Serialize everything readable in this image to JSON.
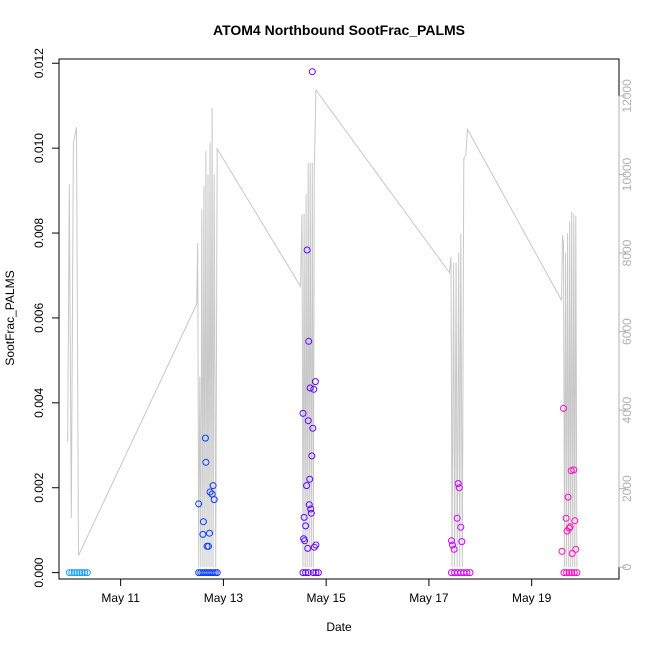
{
  "chart_data": {
    "type": "scatter",
    "title": "ATOM4 Northbound SootFrac_PALMS",
    "xlabel": "Date",
    "ylabel": "SootFrac_PALMS",
    "x_unit": "days (May)",
    "xlim": [
      9.8,
      20.7
    ],
    "ylim": [
      -0.00015,
      0.0121
    ],
    "y2lim": [
      -300,
      12940
    ],
    "x_ticks": [
      {
        "value": 11,
        "label": "May 11"
      },
      {
        "value": 13,
        "label": "May 13"
      },
      {
        "value": 15,
        "label": "May 15"
      },
      {
        "value": 17,
        "label": "May 17"
      },
      {
        "value": 19,
        "label": "May 19"
      }
    ],
    "y_ticks": [
      {
        "value": 0,
        "label": "0.000"
      },
      {
        "value": 0.002,
        "label": "0.002"
      },
      {
        "value": 0.004,
        "label": "0.004"
      },
      {
        "value": 0.006,
        "label": "0.006"
      },
      {
        "value": 0.008,
        "label": "0.008"
      },
      {
        "value": 0.01,
        "label": "0.010"
      },
      {
        "value": 0.012,
        "label": "0.012"
      }
    ],
    "y2_ticks": [
      {
        "value": 0,
        "label": "0"
      },
      {
        "value": 2000,
        "label": "2000"
      },
      {
        "value": 4000,
        "label": "4000"
      },
      {
        "value": 6000,
        "label": "6000"
      },
      {
        "value": 8000,
        "label": "8000"
      },
      {
        "value": 10000,
        "label": "10000"
      },
      {
        "value": 12000,
        "label": "12000"
      }
    ],
    "grid": false,
    "legend": "none",
    "series": [
      {
        "role": "soot_points",
        "color_scale": [
          "#1ea8ff",
          "#0044ff",
          "#6a00ff",
          "#cc00ff",
          "#ff10c0"
        ],
        "points": [
          {
            "x": 10.0,
            "y": 0
          },
          {
            "x": 10.05,
            "y": 0
          },
          {
            "x": 10.1,
            "y": 0
          },
          {
            "x": 10.15,
            "y": 0
          },
          {
            "x": 10.2,
            "y": 0
          },
          {
            "x": 10.25,
            "y": 0
          },
          {
            "x": 10.3,
            "y": 0
          },
          {
            "x": 10.35,
            "y": 0
          },
          {
            "x": 12.52,
            "y": 0
          },
          {
            "x": 12.56,
            "y": 0
          },
          {
            "x": 12.6,
            "y": 0
          },
          {
            "x": 12.64,
            "y": 0
          },
          {
            "x": 12.68,
            "y": 0
          },
          {
            "x": 12.72,
            "y": 0
          },
          {
            "x": 12.76,
            "y": 0
          },
          {
            "x": 12.8,
            "y": 0
          },
          {
            "x": 12.84,
            "y": 0
          },
          {
            "x": 12.88,
            "y": 0
          },
          {
            "x": 12.52,
            "y": 0.00162
          },
          {
            "x": 12.6,
            "y": 0.0009
          },
          {
            "x": 12.61,
            "y": 0.0012
          },
          {
            "x": 12.65,
            "y": 0.00317
          },
          {
            "x": 12.66,
            "y": 0.0026
          },
          {
            "x": 12.68,
            "y": 0.00062
          },
          {
            "x": 12.71,
            "y": 0.00062
          },
          {
            "x": 12.73,
            "y": 0.00093
          },
          {
            "x": 12.74,
            "y": 0.0019
          },
          {
            "x": 12.78,
            "y": 0.00185
          },
          {
            "x": 12.8,
            "y": 0.00205
          },
          {
            "x": 12.82,
            "y": 0.00172
          },
          {
            "x": 14.55,
            "y": 0
          },
          {
            "x": 14.6,
            "y": 0
          },
          {
            "x": 14.65,
            "y": 0
          },
          {
            "x": 14.75,
            "y": 0
          },
          {
            "x": 14.8,
            "y": 0
          },
          {
            "x": 14.85,
            "y": 0
          },
          {
            "x": 14.55,
            "y": 0.00375
          },
          {
            "x": 14.56,
            "y": 0.0008
          },
          {
            "x": 14.57,
            "y": 0.0013
          },
          {
            "x": 14.58,
            "y": 0.00075
          },
          {
            "x": 14.6,
            "y": 0.0011
          },
          {
            "x": 14.62,
            "y": 0.00205
          },
          {
            "x": 14.63,
            "y": 0.0076
          },
          {
            "x": 14.64,
            "y": 0.00057
          },
          {
            "x": 14.65,
            "y": 0.00358
          },
          {
            "x": 14.66,
            "y": 0.00545
          },
          {
            "x": 14.67,
            "y": 0.0016
          },
          {
            "x": 14.68,
            "y": 0.0022
          },
          {
            "x": 14.69,
            "y": 0.00435
          },
          {
            "x": 14.7,
            "y": 0.0015
          },
          {
            "x": 14.71,
            "y": 0.0014
          },
          {
            "x": 14.72,
            "y": 0.00275
          },
          {
            "x": 14.73,
            "y": 0.0118
          },
          {
            "x": 14.74,
            "y": 0.0034
          },
          {
            "x": 14.76,
            "y": 0.00432
          },
          {
            "x": 14.77,
            "y": 0.0006
          },
          {
            "x": 14.79,
            "y": 0.0045
          },
          {
            "x": 14.8,
            "y": 0.00065
          },
          {
            "x": 17.44,
            "y": 0
          },
          {
            "x": 17.5,
            "y": 0
          },
          {
            "x": 17.56,
            "y": 0
          },
          {
            "x": 17.62,
            "y": 0
          },
          {
            "x": 17.68,
            "y": 0
          },
          {
            "x": 17.74,
            "y": 0
          },
          {
            "x": 17.8,
            "y": 0
          },
          {
            "x": 17.44,
            "y": 0.00075
          },
          {
            "x": 17.46,
            "y": 0.00065
          },
          {
            "x": 17.49,
            "y": 0.00055
          },
          {
            "x": 17.55,
            "y": 0.00128
          },
          {
            "x": 17.57,
            "y": 0.0021
          },
          {
            "x": 17.59,
            "y": 0.002
          },
          {
            "x": 17.62,
            "y": 0.00107
          },
          {
            "x": 17.64,
            "y": 0.00073
          },
          {
            "x": 19.63,
            "y": 0
          },
          {
            "x": 19.68,
            "y": 0
          },
          {
            "x": 19.73,
            "y": 0
          },
          {
            "x": 19.78,
            "y": 0
          },
          {
            "x": 19.83,
            "y": 0
          },
          {
            "x": 19.88,
            "y": 0
          },
          {
            "x": 19.59,
            "y": 0.0005
          },
          {
            "x": 19.62,
            "y": 0.00387
          },
          {
            "x": 19.67,
            "y": 0.00128
          },
          {
            "x": 19.69,
            "y": 0.00098
          },
          {
            "x": 19.71,
            "y": 0.00178
          },
          {
            "x": 19.73,
            "y": 0.00105
          },
          {
            "x": 19.75,
            "y": 0.00108
          },
          {
            "x": 19.77,
            "y": 0.0024
          },
          {
            "x": 19.79,
            "y": 0.00045
          },
          {
            "x": 19.82,
            "y": 0.00242
          },
          {
            "x": 19.84,
            "y": 0.00122
          },
          {
            "x": 19.86,
            "y": 0.00055
          }
        ]
      },
      {
        "role": "altitude_line",
        "axis": "right",
        "color": "#c8c8c8",
        "points": [
          {
            "x": 9.97,
            "y": 3200
          },
          {
            "x": 10.0,
            "y": 9750
          },
          {
            "x": 10.04,
            "y": 1250
          },
          {
            "x": 10.08,
            "y": 10800
          },
          {
            "x": 10.14,
            "y": 11200
          },
          {
            "x": 10.18,
            "y": 300
          },
          {
            "x": 12.48,
            "y": 6700
          },
          {
            "x": 12.5,
            "y": 8250
          },
          {
            "x": 12.52,
            "y": 0
          },
          {
            "x": 12.54,
            "y": 4850
          },
          {
            "x": 12.56,
            "y": 0
          },
          {
            "x": 12.58,
            "y": 9100
          },
          {
            "x": 12.6,
            "y": 0
          },
          {
            "x": 12.62,
            "y": 9700
          },
          {
            "x": 12.64,
            "y": 0
          },
          {
            "x": 12.66,
            "y": 10600
          },
          {
            "x": 12.68,
            "y": 0
          },
          {
            "x": 12.7,
            "y": 10000
          },
          {
            "x": 12.72,
            "y": 0
          },
          {
            "x": 12.74,
            "y": 10800
          },
          {
            "x": 12.76,
            "y": 0
          },
          {
            "x": 12.78,
            "y": 11700
          },
          {
            "x": 12.8,
            "y": 0
          },
          {
            "x": 12.82,
            "y": 10000
          },
          {
            "x": 12.85,
            "y": 0
          },
          {
            "x": 12.88,
            "y": 10650
          },
          {
            "x": 14.5,
            "y": 7150
          },
          {
            "x": 14.53,
            "y": 9000
          },
          {
            "x": 14.55,
            "y": 0
          },
          {
            "x": 14.57,
            "y": 9000
          },
          {
            "x": 14.59,
            "y": 0
          },
          {
            "x": 14.61,
            "y": 9500
          },
          {
            "x": 14.63,
            "y": 0
          },
          {
            "x": 14.65,
            "y": 10300
          },
          {
            "x": 14.67,
            "y": 0
          },
          {
            "x": 14.69,
            "y": 10300
          },
          {
            "x": 14.71,
            "y": 0
          },
          {
            "x": 14.73,
            "y": 10300
          },
          {
            "x": 14.75,
            "y": 0
          },
          {
            "x": 14.77,
            "y": 10100
          },
          {
            "x": 14.8,
            "y": 12150
          },
          {
            "x": 17.4,
            "y": 7500
          },
          {
            "x": 17.43,
            "y": 7900
          },
          {
            "x": 17.45,
            "y": 0
          },
          {
            "x": 17.48,
            "y": 7750
          },
          {
            "x": 17.5,
            "y": 0
          },
          {
            "x": 17.53,
            "y": 7750
          },
          {
            "x": 17.55,
            "y": 0
          },
          {
            "x": 17.58,
            "y": 8000
          },
          {
            "x": 17.6,
            "y": 0
          },
          {
            "x": 17.62,
            "y": 8500
          },
          {
            "x": 17.65,
            "y": 0
          },
          {
            "x": 17.68,
            "y": 10400
          },
          {
            "x": 17.72,
            "y": 10500
          },
          {
            "x": 17.75,
            "y": 11150
          },
          {
            "x": 19.58,
            "y": 6800
          },
          {
            "x": 19.6,
            "y": 8450
          },
          {
            "x": 19.62,
            "y": 8250
          },
          {
            "x": 19.64,
            "y": 0
          },
          {
            "x": 19.66,
            "y": 8000
          },
          {
            "x": 19.68,
            "y": 0
          },
          {
            "x": 19.7,
            "y": 8500
          },
          {
            "x": 19.72,
            "y": 0
          },
          {
            "x": 19.74,
            "y": 8800
          },
          {
            "x": 19.76,
            "y": 0
          },
          {
            "x": 19.78,
            "y": 9050
          },
          {
            "x": 19.8,
            "y": 0
          },
          {
            "x": 19.82,
            "y": 9000
          },
          {
            "x": 19.84,
            "y": 0
          },
          {
            "x": 19.86,
            "y": 8950
          },
          {
            "x": 19.88,
            "y": 0
          }
        ]
      }
    ]
  }
}
